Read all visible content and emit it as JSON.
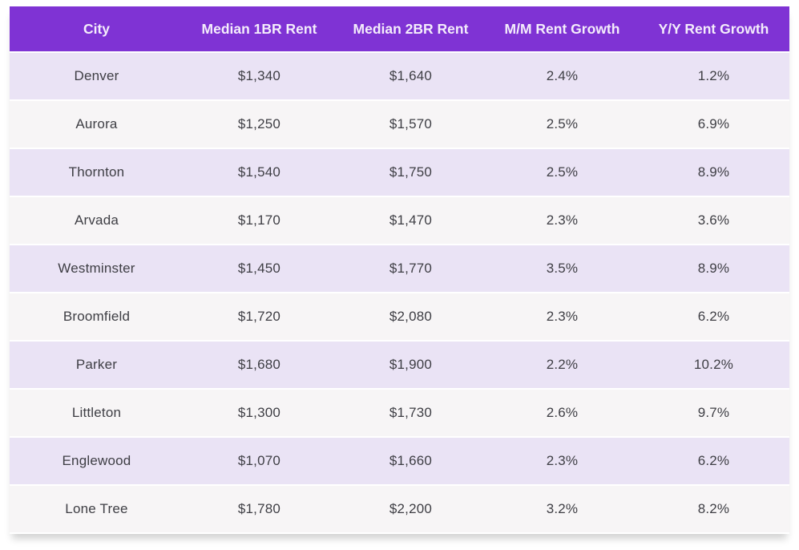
{
  "chart_data": {
    "type": "table",
    "columns": [
      "City",
      "Median 1BR Rent",
      "Median 2BR Rent",
      "M/M Rent Growth",
      "Y/Y Rent Growth"
    ],
    "rows": [
      [
        "Denver",
        "$1,340",
        "$1,640",
        "2.4%",
        "1.2%"
      ],
      [
        "Aurora",
        "$1,250",
        "$1,570",
        "2.5%",
        "6.9%"
      ],
      [
        "Thornton",
        "$1,540",
        "$1,750",
        "2.5%",
        "8.9%"
      ],
      [
        "Arvada",
        "$1,170",
        "$1,470",
        "2.3%",
        "3.6%"
      ],
      [
        "Westminster",
        "$1,450",
        "$1,770",
        "3.5%",
        "8.9%"
      ],
      [
        "Broomfield",
        "$1,720",
        "$2,080",
        "2.3%",
        "6.2%"
      ],
      [
        "Parker",
        "$1,680",
        "$1,900",
        "2.2%",
        "10.2%"
      ],
      [
        "Littleton",
        "$1,300",
        "$1,730",
        "2.6%",
        "9.7%"
      ],
      [
        "Englewood",
        "$1,070",
        "$1,660",
        "2.3%",
        "6.2%"
      ],
      [
        "Lone Tree",
        "$1,780",
        "$2,200",
        "3.2%",
        "8.2%"
      ]
    ]
  },
  "colors": {
    "header_bg": "#7f33d4",
    "header_text": "#f4edfb",
    "row_odd_bg": "#eae3f5",
    "row_even_bg": "#f7f5f6",
    "body_text": "#3e3e44",
    "separator": "#ffffff"
  }
}
